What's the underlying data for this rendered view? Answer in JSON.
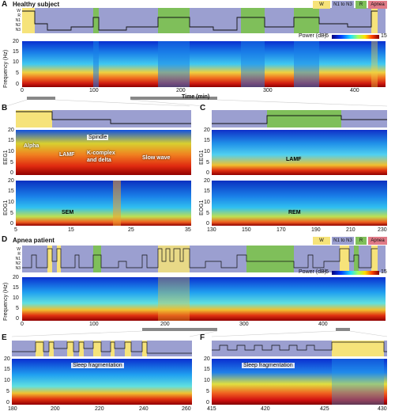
{
  "panels": {
    "A": {
      "letter": "A",
      "title": "Healthy subject",
      "x_ticks": [
        "0",
        "100",
        "200",
        "300",
        "400"
      ],
      "x_label": "Time (min)",
      "y_ticks": [
        "20",
        "15",
        "10",
        "5",
        "0"
      ],
      "y_label": "Frequency (Hz)",
      "stage_labels": [
        "W",
        "R",
        "N1",
        "N2",
        "N3"
      ],
      "power_label": "Power (dB)",
      "power_min": "−5",
      "power_max": "15"
    },
    "B": {
      "letter": "B",
      "annotations": [
        "Alpha",
        "Spindle",
        "LAMF",
        "K-complex",
        "and delta",
        "Slow wave",
        "SEM"
      ],
      "ch1": "EEG1",
      "ch2": "EOG1",
      "y_ticks": [
        "20",
        "15",
        "10",
        "5",
        "0"
      ],
      "x_ticks": [
        "5",
        "15",
        "25",
        "35"
      ]
    },
    "C": {
      "letter": "C",
      "annotations": [
        "LAMF",
        "REM"
      ],
      "ch1": "EEG1",
      "ch2": "EOG1",
      "y_ticks": [
        "20",
        "15",
        "10",
        "5",
        "0"
      ],
      "x_ticks": [
        "130",
        "150",
        "170",
        "190",
        "210",
        "230"
      ]
    },
    "D": {
      "letter": "D",
      "title": "Apnea patient",
      "x_ticks": [
        "0",
        "100",
        "200",
        "300",
        "400"
      ],
      "y_ticks": [
        "20",
        "15",
        "10",
        "5",
        "0"
      ],
      "y_label": "Frequency (Hz)",
      "power_label": "Power (dB)",
      "power_min": "−5",
      "power_max": "15"
    },
    "E": {
      "letter": "E",
      "annotation": "Sleep fragmentation",
      "x_ticks": [
        "180",
        "200",
        "220",
        "240",
        "260"
      ],
      "y_ticks": [
        "20",
        "15",
        "10",
        "5",
        "0"
      ]
    },
    "F": {
      "letter": "F",
      "annotation": "Sleep fragmentation",
      "x_ticks": [
        "415",
        "420",
        "425",
        "430"
      ],
      "y_ticks": [
        "20",
        "15",
        "10",
        "5",
        "0"
      ]
    }
  },
  "legend": [
    {
      "label": "W",
      "color": "#f6e37a"
    },
    {
      "label": "N1 to N3",
      "color": "#9b9fd0"
    },
    {
      "label": "R",
      "color": "#7fbf5a"
    },
    {
      "label": "Apnea",
      "color": "#e07a86"
    }
  ]
}
